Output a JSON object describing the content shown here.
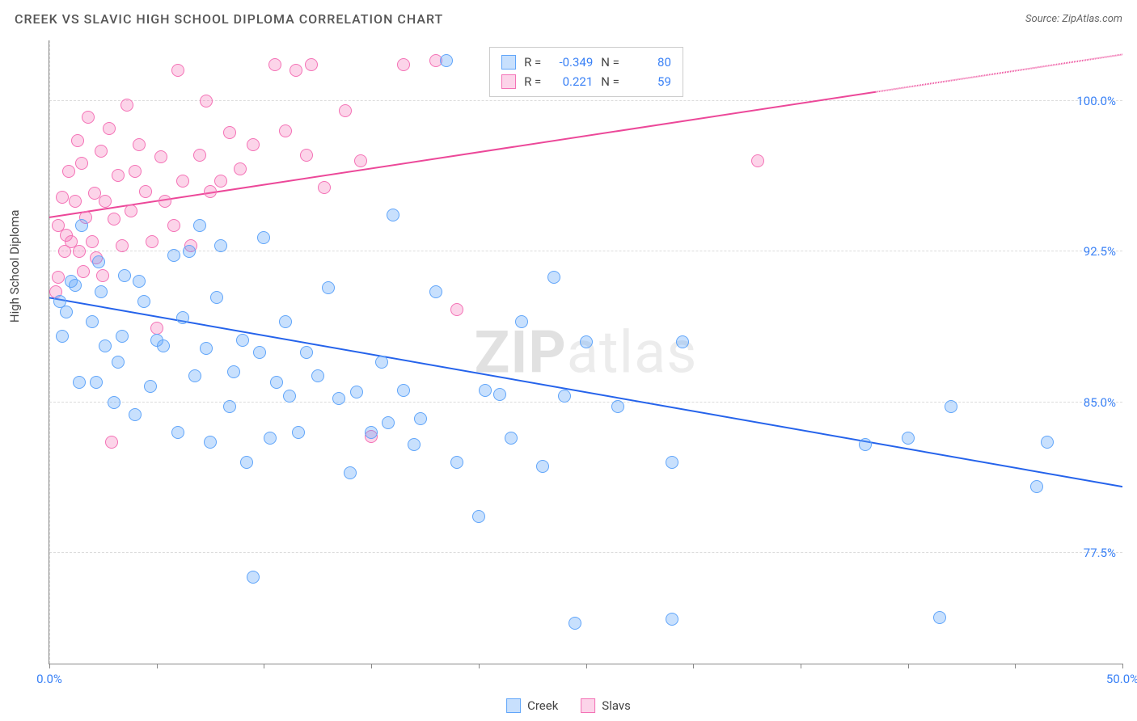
{
  "title": "CREEK VS SLAVIC HIGH SCHOOL DIPLOMA CORRELATION CHART",
  "source": "Source: ZipAtlas.com",
  "ylabel": "High School Diploma",
  "watermark_bold": "ZIP",
  "watermark_rest": "atlas",
  "chart": {
    "type": "scatter",
    "xlim": [
      0,
      50
    ],
    "ylim": [
      72,
      103
    ],
    "xtick_positions": [
      0,
      5,
      10,
      15,
      20,
      25,
      30,
      35,
      40,
      45,
      50
    ],
    "xtick_labels": {
      "0": "0.0%",
      "50": "50.0%"
    },
    "ytick_positions": [
      77.5,
      85.0,
      92.5,
      100.0
    ],
    "ytick_labels": [
      "77.5%",
      "85.0%",
      "92.5%",
      "100.0%"
    ],
    "background_color": "#ffffff",
    "grid_color": "#dcdcdc",
    "axis_color": "#888888",
    "tick_label_color": "#3b82f6",
    "marker_radius": 8,
    "series": [
      {
        "name": "Creek",
        "color_fill": "rgba(96,165,250,0.35)",
        "color_stroke": "#60a5fa",
        "trend_color": "#2563eb",
        "trend_y_at_xmin": 90.2,
        "trend_y_at_xmax": 80.8,
        "trend_dash_after_pct": 100,
        "stats": {
          "R": "-0.349",
          "N": "80"
        },
        "points": [
          [
            0.5,
            90.0
          ],
          [
            0.6,
            88.3
          ],
          [
            0.8,
            89.5
          ],
          [
            1.0,
            91.0
          ],
          [
            1.2,
            90.8
          ],
          [
            1.5,
            93.8
          ],
          [
            1.4,
            86.0
          ],
          [
            2.0,
            89.0
          ],
          [
            2.2,
            86.0
          ],
          [
            2.3,
            92.0
          ],
          [
            2.4,
            90.5
          ],
          [
            2.6,
            87.8
          ],
          [
            3.0,
            85.0
          ],
          [
            3.2,
            87.0
          ],
          [
            3.4,
            88.3
          ],
          [
            3.5,
            91.3
          ],
          [
            4.0,
            84.4
          ],
          [
            4.2,
            91.0
          ],
          [
            4.4,
            90.0
          ],
          [
            4.7,
            85.8
          ],
          [
            5.0,
            88.1
          ],
          [
            5.3,
            87.8
          ],
          [
            5.8,
            92.3
          ],
          [
            6.0,
            83.5
          ],
          [
            6.2,
            89.2
          ],
          [
            6.5,
            92.5
          ],
          [
            6.8,
            86.3
          ],
          [
            7.0,
            93.8
          ],
          [
            7.3,
            87.7
          ],
          [
            7.5,
            83.0
          ],
          [
            7.8,
            90.2
          ],
          [
            8.0,
            92.8
          ],
          [
            8.4,
            84.8
          ],
          [
            8.6,
            86.5
          ],
          [
            9.0,
            88.1
          ],
          [
            9.2,
            82.0
          ],
          [
            9.8,
            87.5
          ],
          [
            9.5,
            76.3
          ],
          [
            10.0,
            93.2
          ],
          [
            10.3,
            83.2
          ],
          [
            10.6,
            86.0
          ],
          [
            11.0,
            89.0
          ],
          [
            11.2,
            85.3
          ],
          [
            11.6,
            83.5
          ],
          [
            12.0,
            87.5
          ],
          [
            12.5,
            86.3
          ],
          [
            13.0,
            90.7
          ],
          [
            13.5,
            85.2
          ],
          [
            14.0,
            81.5
          ],
          [
            14.3,
            85.5
          ],
          [
            15.0,
            83.5
          ],
          [
            15.5,
            87.0
          ],
          [
            15.8,
            84.0
          ],
          [
            16.0,
            94.3
          ],
          [
            16.5,
            85.6
          ],
          [
            17.0,
            82.9
          ],
          [
            17.3,
            84.2
          ],
          [
            18.0,
            90.5
          ],
          [
            18.5,
            102.0
          ],
          [
            19.0,
            82.0
          ],
          [
            20.0,
            79.3
          ],
          [
            20.3,
            85.6
          ],
          [
            21.0,
            85.4
          ],
          [
            21.5,
            83.2
          ],
          [
            22.0,
            89.0
          ],
          [
            23.0,
            81.8
          ],
          [
            23.5,
            91.2
          ],
          [
            24.0,
            85.3
          ],
          [
            24.5,
            74.0
          ],
          [
            25.0,
            88.0
          ],
          [
            26.5,
            84.8
          ],
          [
            29.0,
            74.2
          ],
          [
            29.0,
            82.0
          ],
          [
            29.5,
            88.0
          ],
          [
            38.0,
            82.9
          ],
          [
            40.0,
            83.2
          ],
          [
            42.0,
            84.8
          ],
          [
            41.5,
            74.3
          ],
          [
            46.0,
            80.8
          ],
          [
            46.5,
            83.0
          ]
        ]
      },
      {
        "name": "Slavs",
        "color_fill": "rgba(244,114,182,0.30)",
        "color_stroke": "#f472b6",
        "trend_color": "#ec4899",
        "trend_y_at_xmin": 94.2,
        "trend_y_at_xmax": 102.3,
        "trend_dash_after_pct": 77,
        "stats": {
          "R": "0.221",
          "N": "59"
        },
        "points": [
          [
            0.3,
            90.5
          ],
          [
            0.4,
            93.8
          ],
          [
            0.6,
            95.2
          ],
          [
            0.7,
            92.5
          ],
          [
            0.8,
            93.3
          ],
          [
            0.9,
            96.5
          ],
          [
            1.0,
            93.0
          ],
          [
            1.2,
            95.0
          ],
          [
            1.3,
            98.0
          ],
          [
            1.4,
            92.5
          ],
          [
            1.5,
            96.9
          ],
          [
            1.6,
            91.5
          ],
          [
            1.7,
            94.2
          ],
          [
            1.8,
            99.2
          ],
          [
            2.0,
            93.0
          ],
          [
            2.1,
            95.4
          ],
          [
            2.2,
            92.2
          ],
          [
            2.4,
            97.5
          ],
          [
            2.5,
            91.3
          ],
          [
            2.6,
            95.0
          ],
          [
            2.8,
            98.6
          ],
          [
            3.0,
            94.1
          ],
          [
            3.2,
            96.3
          ],
          [
            3.4,
            92.8
          ],
          [
            3.6,
            99.8
          ],
          [
            3.8,
            94.5
          ],
          [
            4.0,
            96.5
          ],
          [
            4.2,
            97.8
          ],
          [
            4.5,
            95.5
          ],
          [
            4.8,
            93.0
          ],
          [
            5.0,
            88.7
          ],
          [
            5.2,
            97.2
          ],
          [
            5.4,
            95.0
          ],
          [
            5.8,
            93.8
          ],
          [
            6.0,
            101.5
          ],
          [
            6.2,
            96.0
          ],
          [
            6.6,
            92.8
          ],
          [
            7.0,
            97.3
          ],
          [
            7.3,
            100.0
          ],
          [
            7.5,
            95.5
          ],
          [
            8.0,
            96.0
          ],
          [
            8.4,
            98.4
          ],
          [
            8.9,
            96.6
          ],
          [
            9.5,
            97.8
          ],
          [
            10.5,
            101.8
          ],
          [
            11.0,
            98.5
          ],
          [
            11.5,
            101.5
          ],
          [
            12.0,
            97.3
          ],
          [
            12.2,
            101.8
          ],
          [
            12.8,
            95.7
          ],
          [
            13.8,
            99.5
          ],
          [
            14.5,
            97.0
          ],
          [
            15.0,
            83.3
          ],
          [
            16.5,
            101.8
          ],
          [
            18.0,
            102.0
          ],
          [
            19.0,
            89.6
          ],
          [
            33.0,
            97.0
          ],
          [
            0.4,
            91.2
          ],
          [
            2.9,
            83.0
          ]
        ]
      }
    ]
  },
  "legend": {
    "series1": "Creek",
    "series2": "Slavs"
  }
}
